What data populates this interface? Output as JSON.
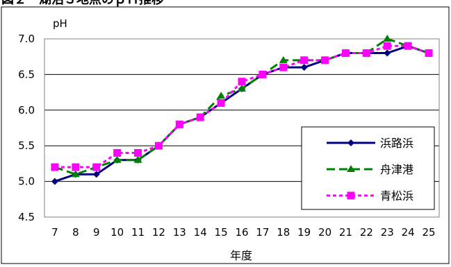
{
  "chart_data": {
    "type": "line",
    "title": "図２　湖沼３地点のｐＨ推移",
    "ylabel": "pH",
    "xlabel": "年度",
    "ylim": [
      4.5,
      7.0
    ],
    "yticks": [
      "4.5",
      "5.0",
      "5.5",
      "6.0",
      "6.5",
      "7.0"
    ],
    "x": [
      7,
      8,
      9,
      10,
      11,
      12,
      13,
      14,
      15,
      16,
      17,
      18,
      19,
      20,
      21,
      22,
      23,
      24,
      25
    ],
    "grid": "horizontal",
    "legend_position": "right",
    "series": [
      {
        "name": "浜路浜",
        "color": "#000080",
        "marker": "diamond",
        "dash": "solid",
        "values": [
          5.0,
          5.1,
          5.1,
          5.3,
          5.3,
          5.5,
          5.8,
          5.9,
          6.1,
          6.3,
          6.5,
          6.6,
          6.6,
          6.7,
          6.8,
          6.8,
          6.8,
          6.9,
          6.8
        ]
      },
      {
        "name": "舟津港",
        "color": "#008000",
        "marker": "triangle",
        "dash": "dashed",
        "values": [
          5.2,
          5.1,
          5.2,
          5.3,
          5.3,
          5.5,
          5.8,
          5.9,
          6.2,
          6.3,
          6.5,
          6.7,
          6.7,
          6.7,
          6.8,
          6.8,
          7.0,
          6.9,
          6.8
        ]
      },
      {
        "name": "青松浜",
        "color": "#ff00ff",
        "marker": "square",
        "dash": "dotted",
        "values": [
          5.2,
          5.2,
          5.2,
          5.4,
          5.4,
          5.5,
          5.8,
          5.9,
          6.1,
          6.4,
          6.5,
          6.6,
          6.7,
          6.7,
          6.8,
          6.8,
          6.9,
          6.9,
          6.8
        ]
      }
    ]
  }
}
